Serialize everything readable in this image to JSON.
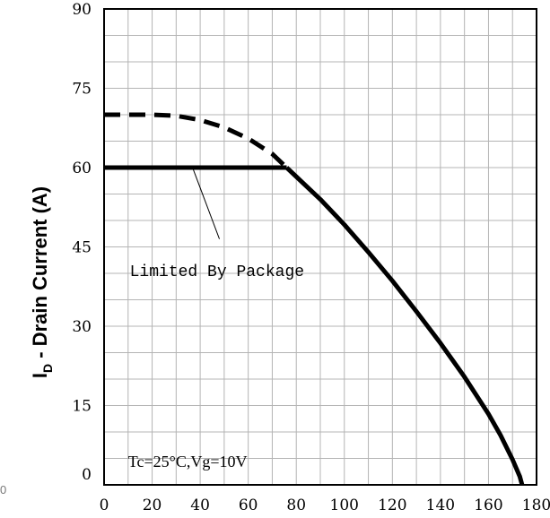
{
  "chart_data": {
    "type": "line",
    "title": "",
    "ylabel_main": "I",
    "ylabel_sub": "D",
    "ylabel_rest": " - Drain Current (A)",
    "xlabel": "",
    "xlim": [
      0,
      180
    ],
    "ylim": [
      0,
      90
    ],
    "x_ticks": [
      "0",
      "20",
      "40",
      "60",
      "80",
      "100",
      "120",
      "140",
      "160",
      "180"
    ],
    "y_ticks": [
      "0",
      "15",
      "30",
      "45",
      "60",
      "75",
      "90"
    ],
    "grid": true,
    "stray_label": "0",
    "series": [
      {
        "style": "dashed",
        "x": [
          0,
          10,
          20,
          30,
          40,
          50,
          60,
          70,
          76
        ],
        "y": [
          70,
          70,
          70,
          69.8,
          69,
          67.6,
          65.5,
          62.6,
          60
        ]
      },
      {
        "style": "solid",
        "x": [
          0,
          20,
          40,
          60,
          76
        ],
        "y": [
          60,
          60,
          60,
          60,
          60
        ]
      },
      {
        "style": "solid",
        "x": [
          76,
          90,
          100,
          110,
          120,
          130,
          140,
          150,
          160,
          165,
          170,
          173,
          174
        ],
        "y": [
          60,
          54,
          49.2,
          44,
          38.6,
          32.8,
          26.8,
          20.4,
          13.4,
          9.4,
          4.8,
          1.6,
          0
        ]
      }
    ],
    "annotations": [
      {
        "text": "Limited By Package",
        "x": 47,
        "y": 39.5,
        "pointer_from": [
          48,
          46.5
        ],
        "pointer_to": [
          37,
          59.8
        ]
      },
      {
        "text": "Tc=25°C,Vg=10V",
        "x": 10,
        "y": 3.4
      }
    ]
  }
}
